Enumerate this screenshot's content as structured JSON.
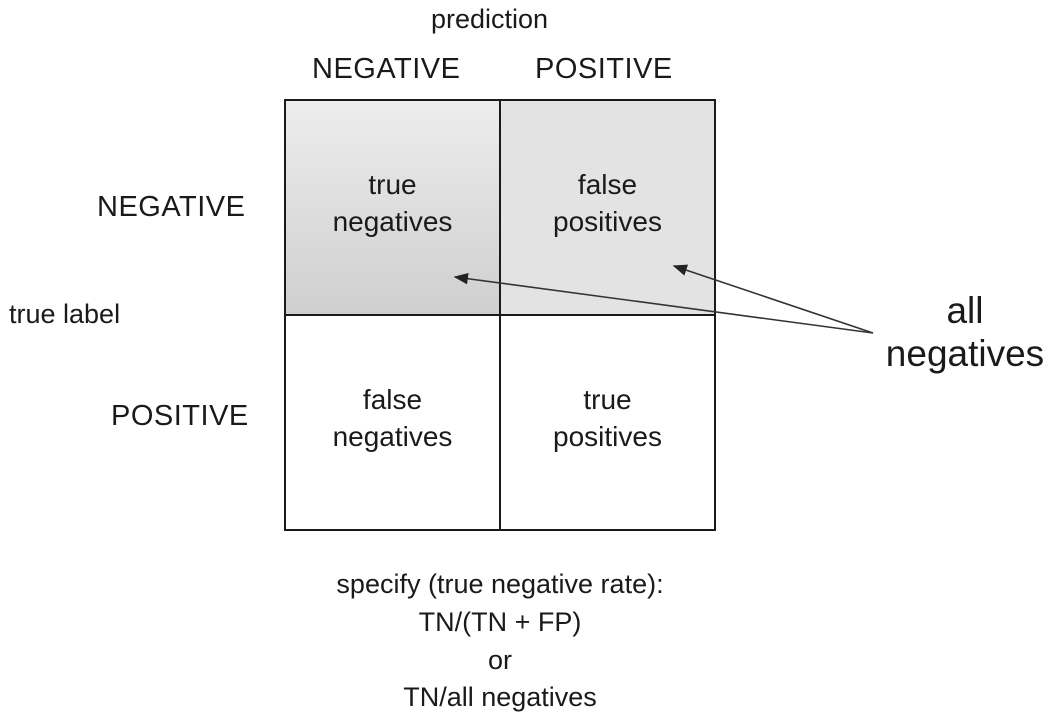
{
  "header": {
    "axis_title": "prediction",
    "col_negative": "NEGATIVE",
    "col_positive": "POSITIVE"
  },
  "rows": {
    "axis_title": "true label",
    "row_negative": "NEGATIVE",
    "row_positive": "POSITIVE"
  },
  "cells": {
    "tn": [
      "true",
      "negatives"
    ],
    "fp": [
      "false",
      "positives"
    ],
    "fn": [
      "false",
      "negatives"
    ],
    "tp": [
      "true",
      "positives"
    ]
  },
  "callout": {
    "lines": [
      "all",
      "negatives"
    ]
  },
  "formula": {
    "lines": [
      "specify (true negative rate):",
      "TN/(TN + FP)",
      "or",
      "TN/all negatives"
    ]
  },
  "colors": {
    "tn_fill_light": "#ededed",
    "tn_fill_dark": "#cfcfcf",
    "fp_fill": "#e3e3e3",
    "line": "#1a1a1a",
    "arrow": "#333333"
  }
}
